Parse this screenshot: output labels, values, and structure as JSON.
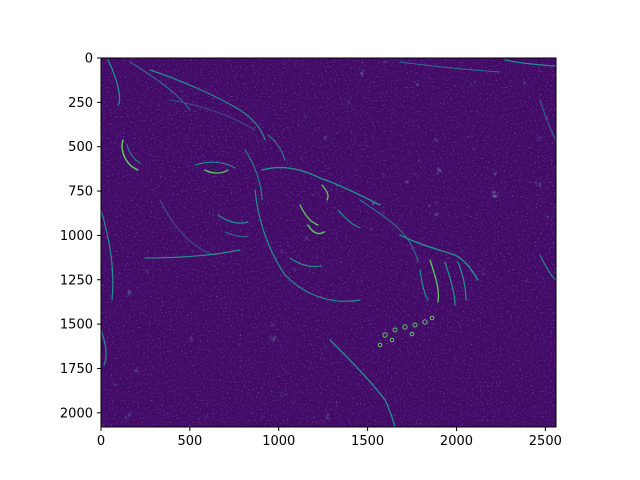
{
  "chart_data": {
    "type": "heatmap",
    "title": "",
    "xlabel": "",
    "ylabel": "",
    "xlim": [
      0,
      2560
    ],
    "ylim": [
      2080,
      0
    ],
    "x_ticks": [
      0,
      500,
      1000,
      1500,
      2000,
      2500
    ],
    "y_ticks": [
      0,
      250,
      500,
      750,
      1000,
      1250,
      1500,
      1750,
      2000
    ],
    "x_tick_labels": [
      "0",
      "500",
      "1000",
      "1500",
      "2000",
      "2500"
    ],
    "y_tick_labels": [
      "0",
      "250",
      "500",
      "750",
      "1000",
      "1250",
      "1500",
      "1750",
      "2000"
    ],
    "colormap": "viridis",
    "background_color": "#440a68",
    "edge_colors": [
      "#3b528b",
      "#21918c",
      "#5ec962"
    ],
    "image_content": "edge-detection magnitude of a photograph showing two faces (a man and a woman lying close together) with a floral/leaf-patterned background",
    "grid": false
  }
}
